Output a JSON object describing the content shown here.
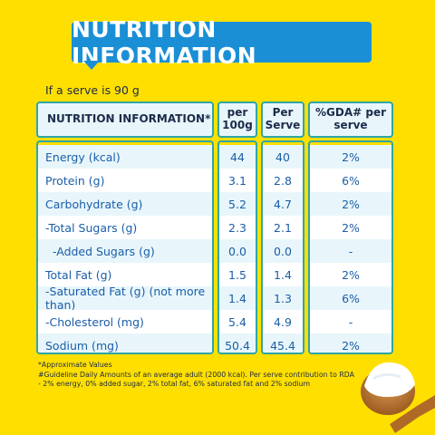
{
  "banner": {
    "title": "NUTRITION INFORMATION"
  },
  "serve_note": "If a serve is 90 g",
  "table": {
    "headers": {
      "name": "NUTRITION INFORMATION*",
      "per100": "per 100g",
      "perServe": "Per Serve",
      "gda": "%GDA# per serve"
    },
    "rows": [
      {
        "name": "Energy (kcal)",
        "per100": "44",
        "perServe": "40",
        "gda": "2%"
      },
      {
        "name": "Protein (g)",
        "per100": "3.1",
        "perServe": "2.8",
        "gda": "6%"
      },
      {
        "name": "Carbohydrate (g)",
        "per100": "5.2",
        "perServe": "4.7",
        "gda": "2%"
      },
      {
        "name": "-Total Sugars (g)",
        "per100": "2.3",
        "perServe": "2.1",
        "gda": "2%"
      },
      {
        "name": "-Added Sugars (g)",
        "per100": "0.0",
        "perServe": "0.0",
        "gda": "-"
      },
      {
        "name": "Total Fat (g)",
        "per100": "1.5",
        "perServe": "1.4",
        "gda": "2%"
      },
      {
        "name": "-Saturated Fat (g) (not more than)",
        "per100": "1.4",
        "perServe": "1.3",
        "gda": "6%"
      },
      {
        "name": "-Cholesterol (mg)",
        "per100": "5.4",
        "perServe": "4.9",
        "gda": "-"
      },
      {
        "name": "Sodium (mg)",
        "per100": "50.4",
        "perServe": "45.4",
        "gda": "2%"
      }
    ]
  },
  "footnotes": {
    "approx": "*Approximate Values",
    "gda": "#Guideline Daily Amounts of an average adult (2000 kcal). Per serve contribution to RDA - 2% energy, 0% added sugar, 2% total fat, 6% saturated fat and 2% sodium"
  },
  "colors": {
    "background": "#ffdf00",
    "banner": "#1a8fd6",
    "border": "#2fa6a4",
    "text": "#1a5ea8"
  },
  "icons": {
    "spoon": "spoon-with-yogurt-icon"
  }
}
